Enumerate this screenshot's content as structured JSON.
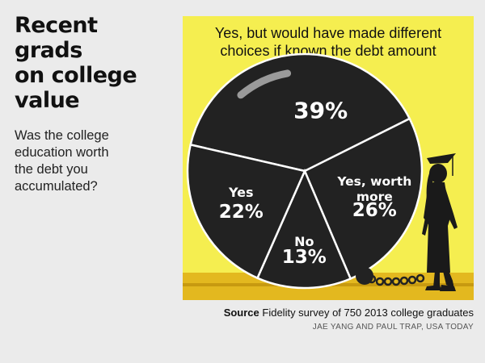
{
  "headline": [
    "Recent grads",
    "on college",
    "value"
  ],
  "question": [
    "Was the college",
    "education worth",
    "the debt you",
    "accumulated?"
  ],
  "colors": {
    "panel": "#f5ee50",
    "pie": "#222222",
    "divider": "#ffffff",
    "ground": "#e3b81f"
  },
  "chart_data": {
    "type": "pie",
    "title": "",
    "slices": [
      {
        "name": "Yes, but would have made different choices if known the debt amount",
        "value": 39
      },
      {
        "name": "Yes, worth more",
        "value": 26
      },
      {
        "name": "No",
        "value": 13
      },
      {
        "name": "Yes",
        "value": 22
      }
    ],
    "labels": [
      {
        "lines": [
          "39%"
        ]
      },
      {
        "lines": [
          "Yes, worth",
          "more",
          "26%"
        ]
      },
      {
        "lines": [
          "No",
          "13%"
        ]
      },
      {
        "lines": [
          "Yes",
          "22%"
        ]
      }
    ],
    "callout": [
      "Yes, but would have made different",
      "choices if known the debt amount"
    ]
  },
  "source": {
    "label": "Source",
    "text": "Fidelity survey of 750 2013 college graduates"
  },
  "credit": "JAE YANG AND PAUL TRAP, USA TODAY"
}
